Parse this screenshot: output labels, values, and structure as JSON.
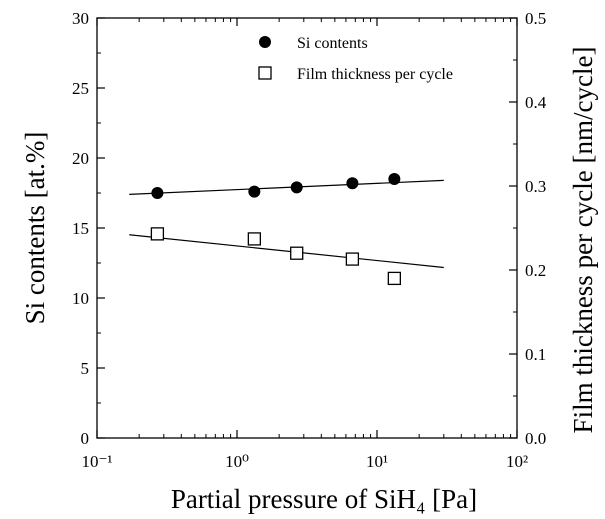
{
  "chart_data": {
    "type": "scatter",
    "title": "",
    "xlabel": "Partial pressure of SiH₄ [Pa]",
    "ylabel_left": "Si contents [at.%]",
    "ylabel_right": "Film thickness per cycle [nm/cycle]",
    "x_scale": "log",
    "xlim": [
      0.1,
      100
    ],
    "ylim_left": [
      0,
      30
    ],
    "ylim_right": [
      0.0,
      0.5
    ],
    "x_ticks": [
      "10⁻¹",
      "10⁰",
      "10¹",
      "10²"
    ],
    "y_ticks_left": [
      "0",
      "5",
      "10",
      "15",
      "20",
      "25",
      "30"
    ],
    "y_ticks_right": [
      "0.0",
      "0.1",
      "0.2",
      "0.3",
      "0.4",
      "0.5"
    ],
    "grid": false,
    "legend_position": "top-right",
    "series": [
      {
        "name": "Si contents",
        "axis": "left",
        "marker": "filled-circle",
        "x": [
          0.27,
          1.33,
          2.67,
          6.67,
          13.3
        ],
        "y": [
          17.5,
          17.6,
          17.9,
          18.2,
          18.5
        ],
        "fit": {
          "x": [
            0.17,
            30
          ],
          "y": [
            17.4,
            18.4
          ]
        }
      },
      {
        "name": "Film thickness per cycle",
        "axis": "right",
        "marker": "open-square",
        "x": [
          0.27,
          1.33,
          2.67,
          6.67,
          13.3
        ],
        "y": [
          0.243,
          0.237,
          0.22,
          0.213,
          0.19
        ],
        "fit": {
          "x": [
            0.17,
            30
          ],
          "y": [
            0.242,
            0.203
          ]
        }
      }
    ]
  }
}
